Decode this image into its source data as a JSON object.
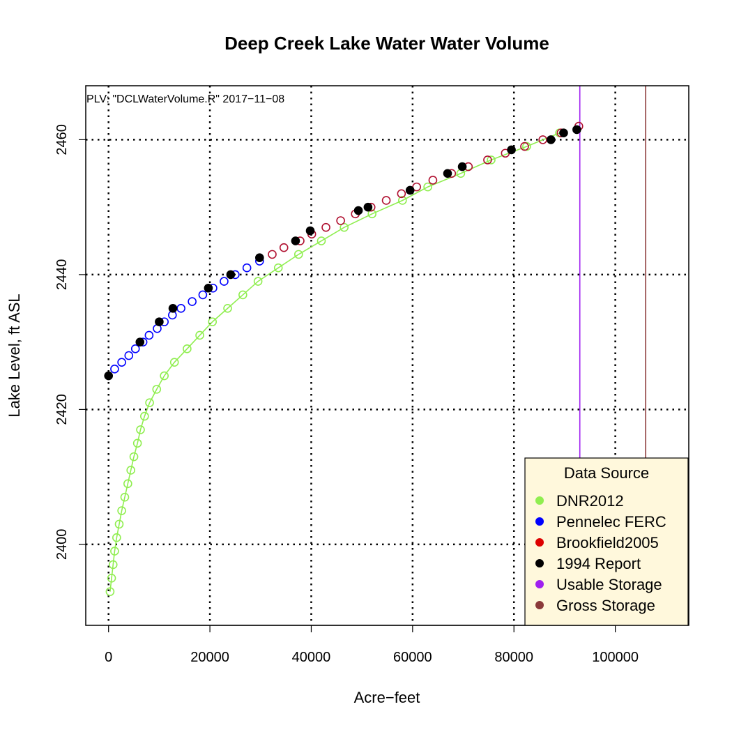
{
  "chart_data": {
    "type": "scatter",
    "title": "Deep Creek Lake Water Water Volume",
    "xlabel": "Acre−feet",
    "ylabel": "Lake Level, ft ASL",
    "annotation": "PLV: \"DCLWaterVolume.R\"  2017−11−08",
    "xlim": [
      -4500,
      114500
    ],
    "ylim": [
      2388,
      2468
    ],
    "x_ticks": [
      0,
      20000,
      40000,
      60000,
      80000,
      100000
    ],
    "y_ticks": [
      2400,
      2420,
      2440,
      2460
    ],
    "grid": "dotted at ticks",
    "legend": {
      "title": "Data Source",
      "position": "bottom-right",
      "entries": [
        {
          "label": "DNR2012",
          "color": "#90ee50"
        },
        {
          "label": "Pennelec FERC",
          "color": "#0000ff"
        },
        {
          "label": "Brookfield2005",
          "color": "#dd0000"
        },
        {
          "label": "1994 Report",
          "color": "#000000"
        },
        {
          "label": "Usable Storage",
          "color": "#a020f0"
        },
        {
          "label": "Gross Storage",
          "color": "#8b3a3a"
        }
      ]
    },
    "vlines": [
      {
        "name": "Usable Storage",
        "x": 93000,
        "color": "#a020f0"
      },
      {
        "name": "Gross Storage",
        "x": 106000,
        "color": "#8b3a3a"
      }
    ],
    "series": [
      {
        "name": "DNR2012",
        "color": "#90ee50",
        "marker": "open-circle",
        "line": true,
        "x": [
          300,
          600,
          900,
          1200,
          1600,
          2100,
          2600,
          3200,
          3800,
          4400,
          5000,
          5700,
          6300,
          7100,
          8100,
          9500,
          11000,
          13000,
          15500,
          18000,
          20500,
          23500,
          26500,
          29500,
          33500,
          37500,
          42000,
          46500,
          52000,
          58000,
          63000,
          69500,
          75500,
          82500,
          89000
        ],
        "y": [
          2393,
          2395,
          2397,
          2399,
          2401,
          2403,
          2405,
          2407,
          2409,
          2411,
          2413,
          2415,
          2417,
          2419,
          2421,
          2423,
          2425,
          2427,
          2429,
          2431,
          2433,
          2435,
          2437,
          2439,
          2441,
          2443,
          2445,
          2447,
          2449,
          2451,
          2453,
          2455,
          2457,
          2459,
          2461
        ]
      },
      {
        "name": "Pennelec FERC",
        "color": "#0000ff",
        "marker": "open-circle",
        "line": false,
        "x": [
          1200,
          2600,
          4000,
          5300,
          6800,
          8000,
          9600,
          11000,
          12600,
          14300,
          16500,
          18600,
          20600,
          22800,
          25000,
          27300,
          29800
        ],
        "y": [
          2426,
          2427,
          2428,
          2429,
          2430,
          2431,
          2432,
          2433,
          2434,
          2435,
          2436,
          2437,
          2438,
          2439,
          2440,
          2441,
          2442
        ]
      },
      {
        "name": "Brookfield2005",
        "color": "#b01030",
        "marker": "open-circle",
        "line": false,
        "x": [
          32300,
          34600,
          37800,
          40100,
          42900,
          45800,
          48700,
          51800,
          54800,
          57800,
          60800,
          64000,
          67700,
          71000,
          74800,
          78300,
          82100,
          85700,
          89300,
          92800
        ],
        "y": [
          2443,
          2444,
          2445,
          2446,
          2447,
          2448,
          2449,
          2450,
          2451,
          2452,
          2453,
          2454,
          2455,
          2456,
          2457,
          2458,
          2459,
          2460,
          2461,
          2462
        ]
      },
      {
        "name": "1994 Report",
        "color": "#000000",
        "marker": "filled-circle",
        "line": false,
        "x": [
          0,
          6200,
          10000,
          12700,
          19700,
          24100,
          29800,
          36900,
          39800,
          49300,
          51200,
          59500,
          66900,
          69800,
          79500,
          87300,
          89800,
          92400
        ],
        "y": [
          2425,
          2430,
          2433,
          2435,
          2438,
          2440,
          2442.5,
          2445,
          2446.5,
          2449.5,
          2450,
          2452.5,
          2455,
          2456,
          2458.5,
          2460,
          2461,
          2461.5
        ]
      }
    ]
  }
}
